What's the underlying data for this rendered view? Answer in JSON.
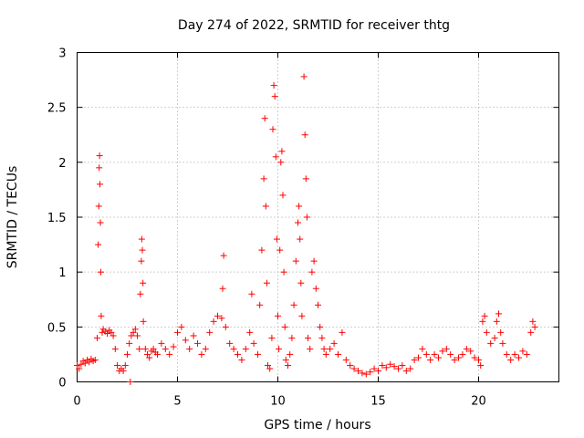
{
  "chart_data": {
    "type": "scatter",
    "title": "Day 274 of 2022, SRMTID for receiver thtg",
    "xlabel": "GPS time / hours",
    "ylabel": "SRMTID / TECUs",
    "xlim": [
      0,
      24
    ],
    "ylim": [
      0,
      3
    ],
    "xticks": [
      0,
      5,
      10,
      15,
      20
    ],
    "yticks": [
      0,
      0.5,
      1,
      1.5,
      2,
      2.5,
      3
    ],
    "xtick_labels": [
      "0",
      "5",
      "10",
      "15",
      "20"
    ],
    "ytick_labels": [
      "0",
      "0.5",
      "1",
      "1.5",
      "2",
      "2.5",
      "3"
    ],
    "grid": true,
    "marker": "+",
    "color": "#ff0000",
    "series": [
      {
        "name": "SRMTID",
        "points": [
          [
            0.0,
            0.15
          ],
          [
            0.1,
            0.12
          ],
          [
            0.2,
            0.16
          ],
          [
            0.3,
            0.19
          ],
          [
            0.4,
            0.17
          ],
          [
            0.5,
            0.2
          ],
          [
            0.6,
            0.18
          ],
          [
            0.7,
            0.21
          ],
          [
            0.8,
            0.19
          ],
          [
            0.9,
            0.2
          ],
          [
            1.0,
            0.4
          ],
          [
            1.05,
            1.25
          ],
          [
            1.08,
            1.6
          ],
          [
            1.1,
            1.95
          ],
          [
            1.12,
            2.06
          ],
          [
            1.14,
            1.8
          ],
          [
            1.16,
            1.45
          ],
          [
            1.18,
            1.0
          ],
          [
            1.2,
            0.6
          ],
          [
            1.25,
            0.45
          ],
          [
            1.3,
            0.48
          ],
          [
            1.4,
            0.46
          ],
          [
            1.5,
            0.44
          ],
          [
            1.6,
            0.47
          ],
          [
            1.7,
            0.45
          ],
          [
            1.8,
            0.42
          ],
          [
            1.9,
            0.3
          ],
          [
            2.0,
            0.15
          ],
          [
            2.1,
            0.1
          ],
          [
            2.2,
            0.12
          ],
          [
            2.3,
            0.1
          ],
          [
            2.4,
            0.15
          ],
          [
            2.5,
            0.25
          ],
          [
            2.6,
            0.35
          ],
          [
            2.65,
            0.0
          ],
          [
            2.7,
            0.42
          ],
          [
            2.8,
            0.45
          ],
          [
            2.9,
            0.48
          ],
          [
            3.0,
            0.42
          ],
          [
            3.1,
            0.3
          ],
          [
            3.15,
            0.8
          ],
          [
            3.2,
            1.1
          ],
          [
            3.22,
            1.3
          ],
          [
            3.25,
            1.2
          ],
          [
            3.28,
            0.9
          ],
          [
            3.3,
            0.55
          ],
          [
            3.4,
            0.3
          ],
          [
            3.5,
            0.25
          ],
          [
            3.6,
            0.22
          ],
          [
            3.7,
            0.28
          ],
          [
            3.8,
            0.3
          ],
          [
            3.9,
            0.27
          ],
          [
            4.0,
            0.25
          ],
          [
            4.2,
            0.35
          ],
          [
            4.4,
            0.3
          ],
          [
            4.6,
            0.25
          ],
          [
            4.8,
            0.32
          ],
          [
            5.0,
            0.45
          ],
          [
            5.2,
            0.5
          ],
          [
            5.4,
            0.38
          ],
          [
            5.6,
            0.3
          ],
          [
            5.8,
            0.42
          ],
          [
            6.0,
            0.35
          ],
          [
            6.2,
            0.25
          ],
          [
            6.4,
            0.3
          ],
          [
            6.6,
            0.45
          ],
          [
            6.8,
            0.55
          ],
          [
            7.0,
            0.6
          ],
          [
            7.2,
            0.58
          ],
          [
            7.25,
            0.85
          ],
          [
            7.3,
            1.15
          ],
          [
            7.4,
            0.5
          ],
          [
            7.6,
            0.35
          ],
          [
            7.8,
            0.3
          ],
          [
            8.0,
            0.25
          ],
          [
            8.2,
            0.2
          ],
          [
            8.4,
            0.3
          ],
          [
            8.6,
            0.45
          ],
          [
            8.7,
            0.8
          ],
          [
            8.8,
            0.35
          ],
          [
            9.0,
            0.25
          ],
          [
            9.1,
            0.7
          ],
          [
            9.2,
            1.2
          ],
          [
            9.3,
            1.85
          ],
          [
            9.35,
            2.4
          ],
          [
            9.4,
            1.6
          ],
          [
            9.45,
            0.9
          ],
          [
            9.5,
            0.15
          ],
          [
            9.6,
            0.12
          ],
          [
            9.7,
            0.4
          ],
          [
            9.75,
            2.3
          ],
          [
            9.8,
            2.7
          ],
          [
            9.85,
            2.6
          ],
          [
            9.9,
            2.05
          ],
          [
            9.95,
            1.3
          ],
          [
            10.0,
            0.6
          ],
          [
            10.05,
            0.3
          ],
          [
            10.1,
            1.2
          ],
          [
            10.15,
            2.0
          ],
          [
            10.2,
            2.1
          ],
          [
            10.25,
            1.7
          ],
          [
            10.3,
            1.0
          ],
          [
            10.35,
            0.5
          ],
          [
            10.4,
            0.2
          ],
          [
            10.5,
            0.15
          ],
          [
            10.6,
            0.25
          ],
          [
            10.7,
            0.4
          ],
          [
            10.8,
            0.7
          ],
          [
            10.9,
            1.1
          ],
          [
            11.0,
            1.45
          ],
          [
            11.05,
            1.6
          ],
          [
            11.1,
            1.3
          ],
          [
            11.15,
            0.9
          ],
          [
            11.2,
            0.6
          ],
          [
            11.3,
            2.78
          ],
          [
            11.35,
            2.25
          ],
          [
            11.4,
            1.85
          ],
          [
            11.45,
            1.5
          ],
          [
            11.5,
            0.4
          ],
          [
            11.6,
            0.3
          ],
          [
            11.7,
            1.0
          ],
          [
            11.8,
            1.1
          ],
          [
            11.9,
            0.85
          ],
          [
            12.0,
            0.7
          ],
          [
            12.1,
            0.5
          ],
          [
            12.2,
            0.4
          ],
          [
            12.3,
            0.3
          ],
          [
            12.4,
            0.25
          ],
          [
            12.6,
            0.3
          ],
          [
            12.8,
            0.35
          ],
          [
            13.0,
            0.25
          ],
          [
            13.2,
            0.45
          ],
          [
            13.4,
            0.2
          ],
          [
            13.6,
            0.15
          ],
          [
            13.8,
            0.12
          ],
          [
            14.0,
            0.1
          ],
          [
            14.2,
            0.08
          ],
          [
            14.4,
            0.07
          ],
          [
            14.6,
            0.09
          ],
          [
            14.8,
            0.12
          ],
          [
            15.0,
            0.1
          ],
          [
            15.2,
            0.15
          ],
          [
            15.4,
            0.13
          ],
          [
            15.6,
            0.16
          ],
          [
            15.8,
            0.14
          ],
          [
            16.0,
            0.12
          ],
          [
            16.2,
            0.15
          ],
          [
            16.4,
            0.1
          ],
          [
            16.6,
            0.12
          ],
          [
            16.8,
            0.2
          ],
          [
            17.0,
            0.22
          ],
          [
            17.2,
            0.3
          ],
          [
            17.4,
            0.25
          ],
          [
            17.6,
            0.2
          ],
          [
            17.8,
            0.25
          ],
          [
            18.0,
            0.22
          ],
          [
            18.2,
            0.28
          ],
          [
            18.4,
            0.3
          ],
          [
            18.6,
            0.25
          ],
          [
            18.8,
            0.2
          ],
          [
            19.0,
            0.22
          ],
          [
            19.2,
            0.25
          ],
          [
            19.4,
            0.3
          ],
          [
            19.6,
            0.28
          ],
          [
            19.8,
            0.22
          ],
          [
            20.0,
            0.2
          ],
          [
            20.1,
            0.15
          ],
          [
            20.2,
            0.55
          ],
          [
            20.3,
            0.6
          ],
          [
            20.4,
            0.45
          ],
          [
            20.6,
            0.35
          ],
          [
            20.8,
            0.4
          ],
          [
            20.9,
            0.55
          ],
          [
            21.0,
            0.62
          ],
          [
            21.1,
            0.45
          ],
          [
            21.2,
            0.35
          ],
          [
            21.4,
            0.25
          ],
          [
            21.6,
            0.2
          ],
          [
            21.8,
            0.25
          ],
          [
            22.0,
            0.22
          ],
          [
            22.2,
            0.28
          ],
          [
            22.4,
            0.25
          ],
          [
            22.6,
            0.45
          ],
          [
            22.7,
            0.55
          ],
          [
            22.8,
            0.5
          ]
        ]
      }
    ]
  }
}
